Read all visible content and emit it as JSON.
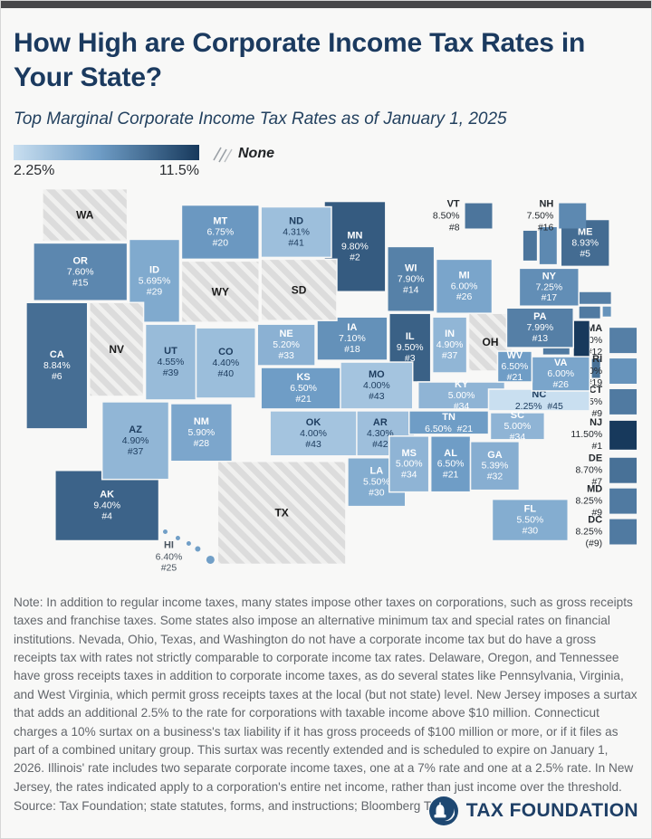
{
  "header": {
    "title": "How High are Corporate Income Tax Rates in Your State?",
    "subtitle": "Top Marginal Corporate Income Tax Rates as of January 1, 2025"
  },
  "legend": {
    "min_label": "2.25%",
    "max_label": "11.5%",
    "none_label": "None"
  },
  "colors": {
    "scale_min": "#c9dff0",
    "scale_mid": "#6f9dc6",
    "scale_max": "#17395c",
    "no_tax_fill": "#dcdcdc",
    "no_tax_stripe": "#f0f0ef",
    "dark_label": "#1d3c5e",
    "light_label": "#ffffff",
    "accent_navy": "#1b3a5f"
  },
  "map": {
    "scale_min_rate": 2.25,
    "scale_max_rate": 11.5,
    "states": [
      {
        "abbr": "AK",
        "rate": 9.4,
        "rate_label": "9.40%",
        "rank_label": "#4"
      },
      {
        "abbr": "AL",
        "rate": 6.5,
        "rate_label": "6.50%",
        "rank_label": "#21"
      },
      {
        "abbr": "AR",
        "rate": 4.3,
        "rate_label": "4.30%",
        "rank_label": "#42"
      },
      {
        "abbr": "AZ",
        "rate": 4.9,
        "rate_label": "4.90%",
        "rank_label": "#37"
      },
      {
        "abbr": "CA",
        "rate": 8.84,
        "rate_label": "8.84%",
        "rank_label": "#6"
      },
      {
        "abbr": "CO",
        "rate": 4.4,
        "rate_label": "4.40%",
        "rank_label": "#40"
      },
      {
        "abbr": "CT",
        "rate": 8.25,
        "rate_label": "8.25%",
        "rank_label": "#9"
      },
      {
        "abbr": "DC",
        "rate": 8.25,
        "rate_label": "8.25%",
        "rank_label": "(#9)"
      },
      {
        "abbr": "DE",
        "rate": 8.7,
        "rate_label": "8.70%",
        "rank_label": "#7"
      },
      {
        "abbr": "FL",
        "rate": 5.5,
        "rate_label": "5.50%",
        "rank_label": "#30"
      },
      {
        "abbr": "GA",
        "rate": 5.39,
        "rate_label": "5.39%",
        "rank_label": "#32"
      },
      {
        "abbr": "HI",
        "rate": 6.4,
        "rate_label": "6.40%",
        "rank_label": "#25"
      },
      {
        "abbr": "IA",
        "rate": 7.1,
        "rate_label": "7.10%",
        "rank_label": "#18"
      },
      {
        "abbr": "ID",
        "rate": 5.695,
        "rate_label": "5.695%",
        "rank_label": "#29"
      },
      {
        "abbr": "IL",
        "rate": 9.5,
        "rate_label": "9.50%",
        "rank_label": "#3"
      },
      {
        "abbr": "IN",
        "rate": 4.9,
        "rate_label": "4.90%",
        "rank_label": "#37"
      },
      {
        "abbr": "KS",
        "rate": 6.5,
        "rate_label": "6.50%",
        "rank_label": "#21"
      },
      {
        "abbr": "KY",
        "rate": 5.0,
        "rate_label": "5.00%",
        "rank_label": "#34"
      },
      {
        "abbr": "LA",
        "rate": 5.5,
        "rate_label": "5.50%",
        "rank_label": "#30"
      },
      {
        "abbr": "MA",
        "rate": 8.0,
        "rate_label": "8.00%",
        "rank_label": "#12"
      },
      {
        "abbr": "MD",
        "rate": 8.25,
        "rate_label": "8.25%",
        "rank_label": "#9"
      },
      {
        "abbr": "ME",
        "rate": 8.93,
        "rate_label": "8.93%",
        "rank_label": "#5"
      },
      {
        "abbr": "MI",
        "rate": 6.0,
        "rate_label": "6.00%",
        "rank_label": "#26"
      },
      {
        "abbr": "MN",
        "rate": 9.8,
        "rate_label": "9.80%",
        "rank_label": "#2"
      },
      {
        "abbr": "MO",
        "rate": 4.0,
        "rate_label": "4.00%",
        "rank_label": "#43"
      },
      {
        "abbr": "MS",
        "rate": 5.0,
        "rate_label": "5.00%",
        "rank_label": "#34"
      },
      {
        "abbr": "MT",
        "rate": 6.75,
        "rate_label": "6.75%",
        "rank_label": "#20"
      },
      {
        "abbr": "NC",
        "rate": 2.25,
        "rate_label": "2.25%",
        "rank_label": "#45"
      },
      {
        "abbr": "ND",
        "rate": 4.31,
        "rate_label": "4.31%",
        "rank_label": "#41"
      },
      {
        "abbr": "NE",
        "rate": 5.2,
        "rate_label": "5.20%",
        "rank_label": "#33"
      },
      {
        "abbr": "NH",
        "rate": 7.5,
        "rate_label": "7.50%",
        "rank_label": "#16"
      },
      {
        "abbr": "NJ",
        "rate": 11.5,
        "rate_label": "11.50%",
        "rank_label": "#1"
      },
      {
        "abbr": "NM",
        "rate": 5.9,
        "rate_label": "5.90%",
        "rank_label": "#28"
      },
      {
        "abbr": "NV",
        "no_tax": true
      },
      {
        "abbr": "NY",
        "rate": 7.25,
        "rate_label": "7.25%",
        "rank_label": "#17"
      },
      {
        "abbr": "OH",
        "no_tax": true
      },
      {
        "abbr": "OK",
        "rate": 4.0,
        "rate_label": "4.00%",
        "rank_label": "#43"
      },
      {
        "abbr": "OR",
        "rate": 7.6,
        "rate_label": "7.60%",
        "rank_label": "#15"
      },
      {
        "abbr": "PA",
        "rate": 7.99,
        "rate_label": "7.99%",
        "rank_label": "#13"
      },
      {
        "abbr": "RI",
        "rate": 7.0,
        "rate_label": "7.00%",
        "rank_label": "#19"
      },
      {
        "abbr": "SC",
        "rate": 5.0,
        "rate_label": "5.00%",
        "rank_label": "#34"
      },
      {
        "abbr": "SD",
        "no_tax": true
      },
      {
        "abbr": "TN",
        "rate": 6.5,
        "rate_label": "6.50%",
        "rank_label": "#21"
      },
      {
        "abbr": "TX",
        "no_tax": true
      },
      {
        "abbr": "UT",
        "rate": 4.55,
        "rate_label": "4.55%",
        "rank_label": "#39"
      },
      {
        "abbr": "VA",
        "rate": 6.0,
        "rate_label": "6.00%",
        "rank_label": "#26"
      },
      {
        "abbr": "VT",
        "rate": 8.5,
        "rate_label": "8.50%",
        "rank_label": "#8"
      },
      {
        "abbr": "WA",
        "no_tax": true
      },
      {
        "abbr": "WI",
        "rate": 7.9,
        "rate_label": "7.90%",
        "rank_label": "#14"
      },
      {
        "abbr": "WV",
        "rate": 6.5,
        "rate_label": "6.50%",
        "rank_label": "#21"
      },
      {
        "abbr": "WY",
        "no_tax": true
      }
    ]
  },
  "note": "Note: In addition to regular income taxes, many states impose other taxes on corporations, such as gross receipts taxes and franchise taxes. Some states also impose an alternative minimum tax and special rates on financial institutions. Nevada, Ohio, Texas, and Washington do not have a corporate income tax but do have a gross receipts tax with rates not strictly comparable to corporate income tax rates. Delaware, Oregon, and Tennessee have gross receipts taxes in addition to corporate income taxes, as do several states like Pennsylvania, Virginia, and West Virginia, which permit gross receipts taxes at the local (but not state) level. New Jersey imposes a surtax that adds an additional 2.5% to the rate for corporations with taxable income above $10 million. Connecticut charges a 10% surtax on a business's tax liability if it has gross proceeds of $100 million or more, or if it files as part of a combined unitary group. This surtax was recently extended and is scheduled to expire on January 1, 2026. Illinois' rate includes two separate corporate income taxes, one at a 7% rate and one at a 2.5% rate. In New Jersey, the rates indicated apply to a corporation's entire net income, rather than just income over the threshold.",
  "source": "Source: Tax Foundation; state statutes, forms, and instructions; Bloomberg Tax.",
  "footer": {
    "brand": "TAX FOUNDATION"
  }
}
